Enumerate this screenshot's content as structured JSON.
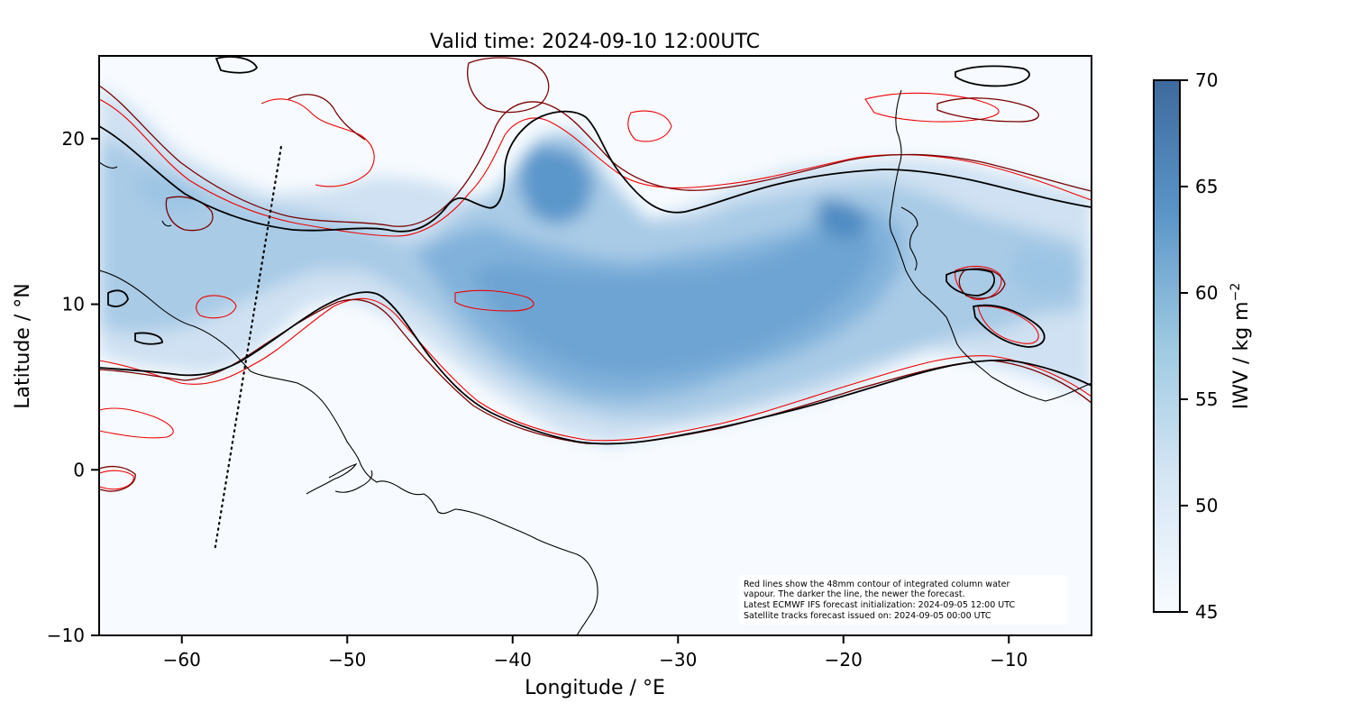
{
  "title": "Valid time: 2024-09-10 12:00UTC",
  "x_axis": {
    "label": "Longitude / °E",
    "range": [
      -65,
      -5
    ],
    "ticks": [
      {
        "value": -60,
        "label": "−60"
      },
      {
        "value": -50,
        "label": "−50"
      },
      {
        "value": -40,
        "label": "−40"
      },
      {
        "value": -30,
        "label": "−30"
      },
      {
        "value": -20,
        "label": "−20"
      },
      {
        "value": -10,
        "label": "−10"
      }
    ]
  },
  "y_axis": {
    "label": "Latitude / °N",
    "range": [
      -10,
      25
    ],
    "ticks": [
      {
        "value": 20,
        "label": "20"
      },
      {
        "value": 10,
        "label": "10"
      },
      {
        "value": 0,
        "label": "0"
      },
      {
        "value": -10,
        "label": "−10"
      }
    ]
  },
  "colorbar": {
    "label": "IWV / kg m",
    "label_superscript": "−2",
    "range": [
      45,
      70
    ],
    "colors": [
      "#f7fbff",
      "#c6dbef",
      "#6baed6",
      "#2171b5",
      "#08306b"
    ],
    "ticks": [
      {
        "value": 70,
        "label": "70"
      },
      {
        "value": 65,
        "label": "65"
      },
      {
        "value": 60,
        "label": "60"
      },
      {
        "value": 55,
        "label": "55"
      },
      {
        "value": 50,
        "label": "50"
      },
      {
        "value": 45,
        "label": "45"
      }
    ]
  },
  "annotation": {
    "lines": [
      "Red lines show the 48mm contour of integrated column water",
      "vapour. The darker the line, the newer the forecast.",
      "Latest ECMWF IFS forecast initialization: 2024-09-05 12:00 UTC",
      "Satellite tracks forecast issued on: 2024-09-05 00:00 UTC"
    ]
  },
  "colors": {
    "contour_newest": "#000000",
    "contour_mid": "#7a0000",
    "contour_oldest": "#ee0000",
    "coastline": "#000000",
    "satellite_track": "#000000"
  },
  "satellite_track": [
    {
      "lon": -54.0,
      "lat": 19.5
    },
    {
      "lon": -58.0,
      "lat": -4.8
    }
  ]
}
